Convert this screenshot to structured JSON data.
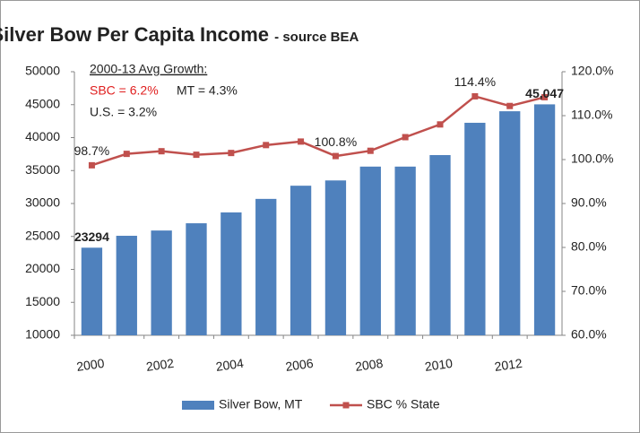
{
  "chart_data": {
    "type": "bar",
    "title": "Silver Bow Per Capita Income",
    "subtitle": " - source BEA",
    "annotations": [
      {
        "text": "2000-13 Avg Growth:",
        "color": "#222222"
      },
      {
        "text": "SBC = 6.2%",
        "color": "#e02020"
      },
      {
        "text": "MT = 4.3%",
        "color": "#222222"
      },
      {
        "text": "U.S. = 3.2%",
        "color": "#222222"
      }
    ],
    "categories": [
      "2000",
      null,
      "2002",
      null,
      "2004",
      null,
      "2006",
      null,
      "2008",
      null,
      "2010",
      null,
      "2012",
      null
    ],
    "series": [
      {
        "name": "Silver Bow, MT",
        "type": "bar",
        "color": "#4f81bd",
        "values": [
          23294,
          25100,
          25900,
          27000,
          28650,
          30700,
          32700,
          33500,
          35600,
          35600,
          37350,
          42250,
          44000,
          45047
        ],
        "value_labels": [
          "23294",
          null,
          null,
          null,
          null,
          null,
          null,
          null,
          null,
          null,
          null,
          null,
          null,
          "45,047"
        ]
      },
      {
        "name": "SBC % State",
        "type": "line",
        "axis": "y2",
        "color": "#c0504d",
        "values": [
          98.7,
          101.3,
          101.9,
          101.1,
          101.5,
          103.3,
          104.1,
          100.8,
          102.0,
          105.1,
          108.0,
          114.4,
          112.2,
          114.2
        ],
        "value_labels": [
          "98.7%",
          null,
          null,
          null,
          null,
          null,
          null,
          "100.8%",
          null,
          null,
          null,
          "114.4%",
          null,
          null
        ]
      }
    ],
    "ylim": [
      10000,
      50000
    ],
    "yticks": [
      10000,
      15000,
      20000,
      25000,
      30000,
      35000,
      40000,
      45000,
      50000
    ],
    "y2lim": [
      60,
      120
    ],
    "y2ticks": [
      {
        "value": 60,
        "label": "60.0%"
      },
      {
        "value": 70,
        "label": "70.0%"
      },
      {
        "value": 80,
        "label": "80.0%"
      },
      {
        "value": 90,
        "label": "90.0%"
      },
      {
        "value": 100,
        "label": "100.0%"
      },
      {
        "value": 110,
        "label": "110.0%"
      },
      {
        "value": 120,
        "label": "120.0%"
      }
    ],
    "grid": false,
    "legend": "bottom"
  }
}
